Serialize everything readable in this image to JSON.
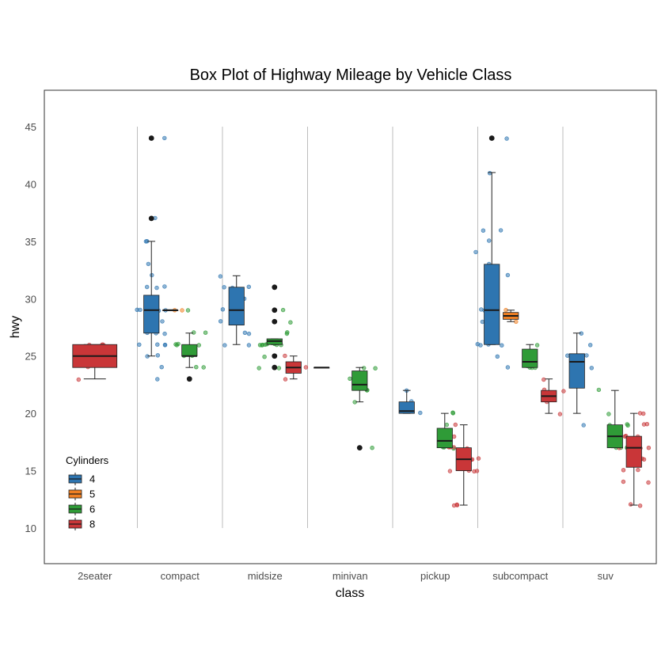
{
  "chart_data": {
    "type": "box",
    "title": "Box Plot of Highway Mileage by Vehicle Class",
    "xlabel": "class",
    "ylabel": "hwy",
    "ylim": [
      7,
      48
    ],
    "yticks": [
      10,
      15,
      20,
      25,
      30,
      35,
      40,
      45
    ],
    "categories": [
      "2seater",
      "compact",
      "midsize",
      "minivan",
      "pickup",
      "subcompact",
      "suv"
    ],
    "grid": "vertical separators between classes",
    "legend": {
      "title": "Cylinders",
      "placement": "bottom-left inside",
      "entries": [
        "4",
        "5",
        "6",
        "8"
      ]
    },
    "colors": {
      "4": "#2e75b0",
      "5": "#ef7f22",
      "6": "#2f9b37",
      "8": "#c93638"
    },
    "boxes": [
      {
        "class": "2seater",
        "cyl": "8",
        "lower_whisker": 23,
        "q1": 24,
        "median": 25,
        "q3": 26,
        "upper_whisker": 26,
        "outliers": []
      },
      {
        "class": "compact",
        "cyl": "4",
        "lower_whisker": 25,
        "q1": 27,
        "median": 29,
        "q3": 30.3,
        "upper_whisker": 35,
        "outliers": [
          37,
          44
        ]
      },
      {
        "class": "compact",
        "cyl": "5",
        "lower_whisker": 29,
        "q1": 29,
        "median": 29,
        "q3": 29,
        "upper_whisker": 29,
        "outliers": []
      },
      {
        "class": "compact",
        "cyl": "6",
        "lower_whisker": 24,
        "q1": 25,
        "median": 25,
        "q3": 26,
        "upper_whisker": 27,
        "outliers": [
          23
        ]
      },
      {
        "class": "midsize",
        "cyl": "4",
        "lower_whisker": 26,
        "q1": 27.7,
        "median": 29,
        "q3": 31,
        "upper_whisker": 32,
        "outliers": []
      },
      {
        "class": "midsize",
        "cyl": "6",
        "lower_whisker": 26,
        "q1": 26,
        "median": 26.3,
        "q3": 26.5,
        "upper_whisker": 26.5,
        "outliers": [
          24,
          25,
          28,
          29,
          31
        ]
      },
      {
        "class": "midsize",
        "cyl": "8",
        "lower_whisker": 23,
        "q1": 23.5,
        "median": 24,
        "q3": 24.5,
        "upper_whisker": 25,
        "outliers": []
      },
      {
        "class": "minivan",
        "cyl": "4",
        "lower_whisker": 24,
        "q1": 24,
        "median": 24,
        "q3": 24,
        "upper_whisker": 24,
        "outliers": []
      },
      {
        "class": "minivan",
        "cyl": "6",
        "lower_whisker": 21,
        "q1": 22,
        "median": 22.5,
        "q3": 23.7,
        "upper_whisker": 24,
        "outliers": [
          17
        ]
      },
      {
        "class": "pickup",
        "cyl": "4",
        "lower_whisker": 20,
        "q1": 20,
        "median": 20.2,
        "q3": 21,
        "upper_whisker": 22,
        "outliers": []
      },
      {
        "class": "pickup",
        "cyl": "6",
        "lower_whisker": 17,
        "q1": 17,
        "median": 17.6,
        "q3": 18.7,
        "upper_whisker": 20,
        "outliers": []
      },
      {
        "class": "pickup",
        "cyl": "8",
        "lower_whisker": 12,
        "q1": 15,
        "median": 16,
        "q3": 17,
        "upper_whisker": 19,
        "outliers": []
      },
      {
        "class": "subcompact",
        "cyl": "4",
        "lower_whisker": 26,
        "q1": 26,
        "median": 29,
        "q3": 33,
        "upper_whisker": 41,
        "outliers": [
          44
        ]
      },
      {
        "class": "subcompact",
        "cyl": "5",
        "lower_whisker": 28,
        "q1": 28.2,
        "median": 28.5,
        "q3": 28.8,
        "upper_whisker": 29,
        "outliers": []
      },
      {
        "class": "subcompact",
        "cyl": "6",
        "lower_whisker": 24,
        "q1": 24,
        "median": 24.5,
        "q3": 25.6,
        "upper_whisker": 26,
        "outliers": []
      },
      {
        "class": "subcompact",
        "cyl": "8",
        "lower_whisker": 20,
        "q1": 21,
        "median": 21.5,
        "q3": 22,
        "upper_whisker": 23,
        "outliers": []
      },
      {
        "class": "suv",
        "cyl": "4",
        "lower_whisker": 20,
        "q1": 22.2,
        "median": 24.5,
        "q3": 25.2,
        "upper_whisker": 27,
        "outliers": []
      },
      {
        "class": "suv",
        "cyl": "6",
        "lower_whisker": 17,
        "q1": 17,
        "median": 18,
        "q3": 19,
        "upper_whisker": 22,
        "outliers": []
      },
      {
        "class": "suv",
        "cyl": "8",
        "lower_whisker": 12,
        "q1": 15.3,
        "median": 17,
        "q3": 18,
        "upper_whisker": 20,
        "outliers": []
      }
    ],
    "jitter_points": [
      {
        "class": "2seater",
        "cyl": "8",
        "values": [
          23,
          24,
          26,
          26,
          26
        ]
      },
      {
        "class": "compact",
        "cyl": "4",
        "values": [
          23,
          24,
          25,
          25,
          26,
          26,
          26,
          26,
          27,
          27,
          27,
          28,
          29,
          29,
          29,
          29,
          29,
          30,
          30,
          31,
          31,
          31,
          32,
          33,
          35,
          35,
          37,
          44
        ]
      },
      {
        "class": "compact",
        "cyl": "5",
        "values": [
          29,
          29
        ]
      },
      {
        "class": "compact",
        "cyl": "6",
        "values": [
          23,
          24,
          24,
          25,
          25,
          26,
          26,
          26,
          26,
          27,
          27,
          29
        ]
      },
      {
        "class": "midsize",
        "cyl": "4",
        "values": [
          26,
          26,
          27,
          27,
          28,
          29,
          29,
          30,
          30,
          31,
          31,
          31,
          32
        ]
      },
      {
        "class": "midsize",
        "cyl": "6",
        "values": [
          24,
          24,
          25,
          26,
          26,
          26,
          26,
          26,
          26,
          26,
          26,
          27,
          27,
          28,
          29
        ]
      },
      {
        "class": "midsize",
        "cyl": "8",
        "values": [
          23,
          24,
          25
        ]
      },
      {
        "class": "minivan",
        "cyl": "6",
        "values": [
          17,
          21,
          22,
          22,
          23,
          24,
          24
        ]
      },
      {
        "class": "pickup",
        "cyl": "4",
        "values": [
          20,
          21,
          22
        ]
      },
      {
        "class": "pickup",
        "cyl": "6",
        "values": [
          17,
          17,
          17,
          18,
          19,
          20,
          20
        ]
      },
      {
        "class": "pickup",
        "cyl": "8",
        "values": [
          12,
          12,
          12,
          15,
          15,
          15,
          15,
          16,
          16,
          16,
          17,
          17,
          17,
          17,
          17,
          18,
          19
        ]
      },
      {
        "class": "subcompact",
        "cyl": "4",
        "values": [
          24,
          25,
          26,
          26,
          26,
          26,
          27,
          28,
          29,
          29,
          32,
          32,
          33,
          34,
          35,
          36,
          36,
          41,
          44
        ]
      },
      {
        "class": "subcompact",
        "cyl": "5",
        "values": [
          28,
          29
        ]
      },
      {
        "class": "subcompact",
        "cyl": "6",
        "values": [
          24,
          24,
          24,
          26
        ]
      },
      {
        "class": "subcompact",
        "cyl": "8",
        "values": [
          20,
          21,
          22,
          22,
          23
        ]
      },
      {
        "class": "suv",
        "cyl": "4",
        "values": [
          19,
          24,
          25,
          25,
          26,
          27
        ]
      },
      {
        "class": "suv",
        "cyl": "6",
        "values": [
          17,
          17,
          17,
          17,
          18,
          18,
          19,
          19,
          19,
          20,
          22
        ]
      },
      {
        "class": "suv",
        "cyl": "8",
        "values": [
          12,
          12,
          14,
          14,
          15,
          15,
          16,
          16,
          16,
          17,
          17,
          17,
          17,
          17,
          18,
          18,
          18,
          19,
          19,
          20,
          20
        ]
      }
    ]
  }
}
